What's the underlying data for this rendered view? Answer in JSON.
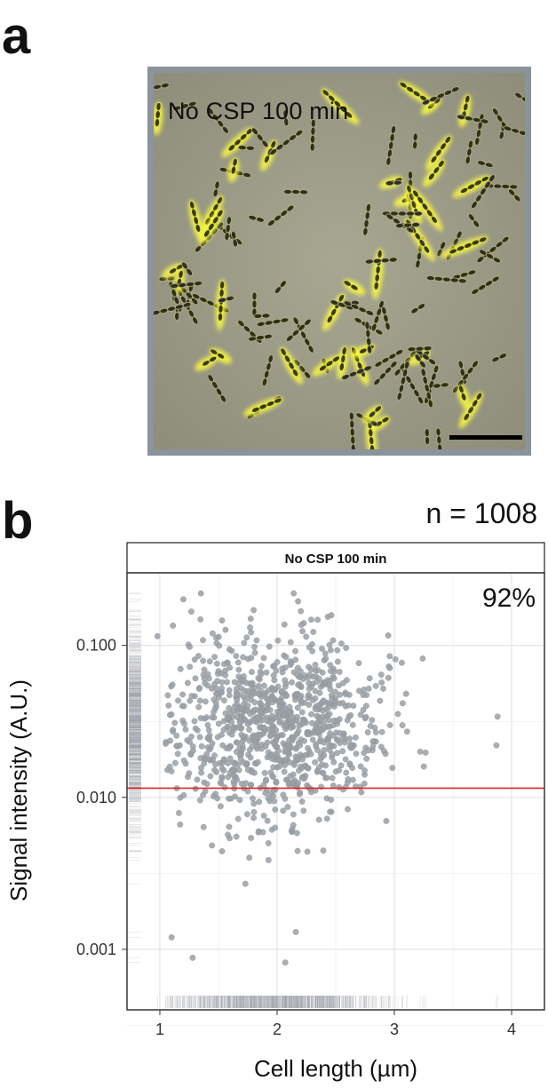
{
  "panel_a": {
    "letter": "a",
    "image_label": "No CSP 100 min",
    "scale_bar_icon": "scale-bar"
  },
  "panel_b": {
    "letter": "b",
    "n_label": "n = 1008"
  },
  "chart_data": {
    "type": "scatter",
    "title": "No CSP 100 min",
    "annotation": "92%",
    "xlabel": "Cell length (µm)",
    "ylabel": "Signal intensity (A.U.)",
    "x_ticks": [
      "1",
      "2",
      "3",
      "4"
    ],
    "x_tick_values": [
      1,
      2,
      3,
      4
    ],
    "y_ticks": [
      "0.001",
      "0.010",
      "0.100"
    ],
    "y_tick_values": [
      0.001,
      0.01,
      0.1
    ],
    "y_scale": "log",
    "xlim": [
      0.72,
      4.28
    ],
    "ylim": [
      0.0004,
      0.3
    ],
    "grid": true,
    "rug": true,
    "threshold_line": {
      "y": 0.0115,
      "color": "#e0242b"
    },
    "point_color": "#9aa0a6",
    "total_points": 1008,
    "cluster": {
      "x_mean": 1.95,
      "x_sd": 0.45,
      "log10_y_mean": -1.55,
      "log10_y_sd": 0.3
    },
    "notable_points": [
      {
        "x": 0.98,
        "y": 0.115
      },
      {
        "x": 1.1,
        "y": 0.0012
      },
      {
        "x": 1.28,
        "y": 0.00088
      },
      {
        "x": 2.07,
        "y": 0.00082
      },
      {
        "x": 1.73,
        "y": 0.0027
      },
      {
        "x": 3.88,
        "y": 0.034
      },
      {
        "x": 3.87,
        "y": 0.022
      },
      {
        "x": 1.35,
        "y": 0.22
      },
      {
        "x": 2.16,
        "y": 0.0013
      },
      {
        "x": 3.22,
        "y": 0.02
      },
      {
        "x": 3.1,
        "y": 0.048
      }
    ]
  }
}
